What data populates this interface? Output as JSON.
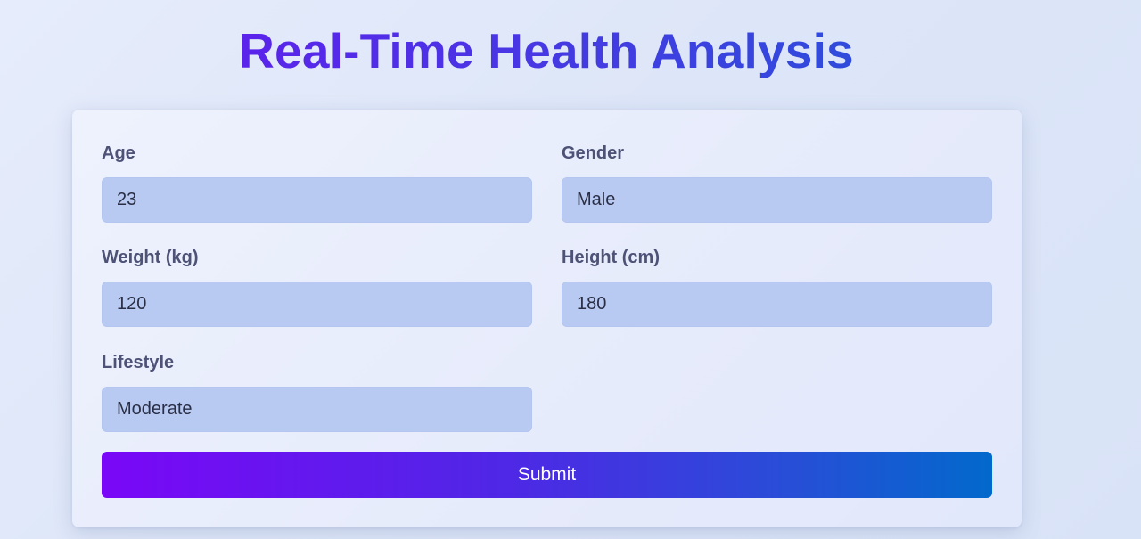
{
  "header": {
    "title": "Real-Time Health Analysis"
  },
  "form": {
    "age": {
      "label": "Age",
      "value": "23"
    },
    "gender": {
      "label": "Gender",
      "value": "Male"
    },
    "weight": {
      "label": "Weight (kg)",
      "value": "120"
    },
    "height": {
      "label": "Height (cm)",
      "value": "180"
    },
    "lifestyle": {
      "label": "Lifestyle",
      "value": "Moderate"
    },
    "submit_label": "Submit"
  },
  "colors": {
    "title_gradient_start": "#6a13f2",
    "title_gradient_end": "#1e5ad6",
    "input_background": "#b8caf2",
    "label_text": "#4d5276",
    "button_gradient_start": "#7a07f7",
    "button_gradient_end": "#0269cc"
  }
}
